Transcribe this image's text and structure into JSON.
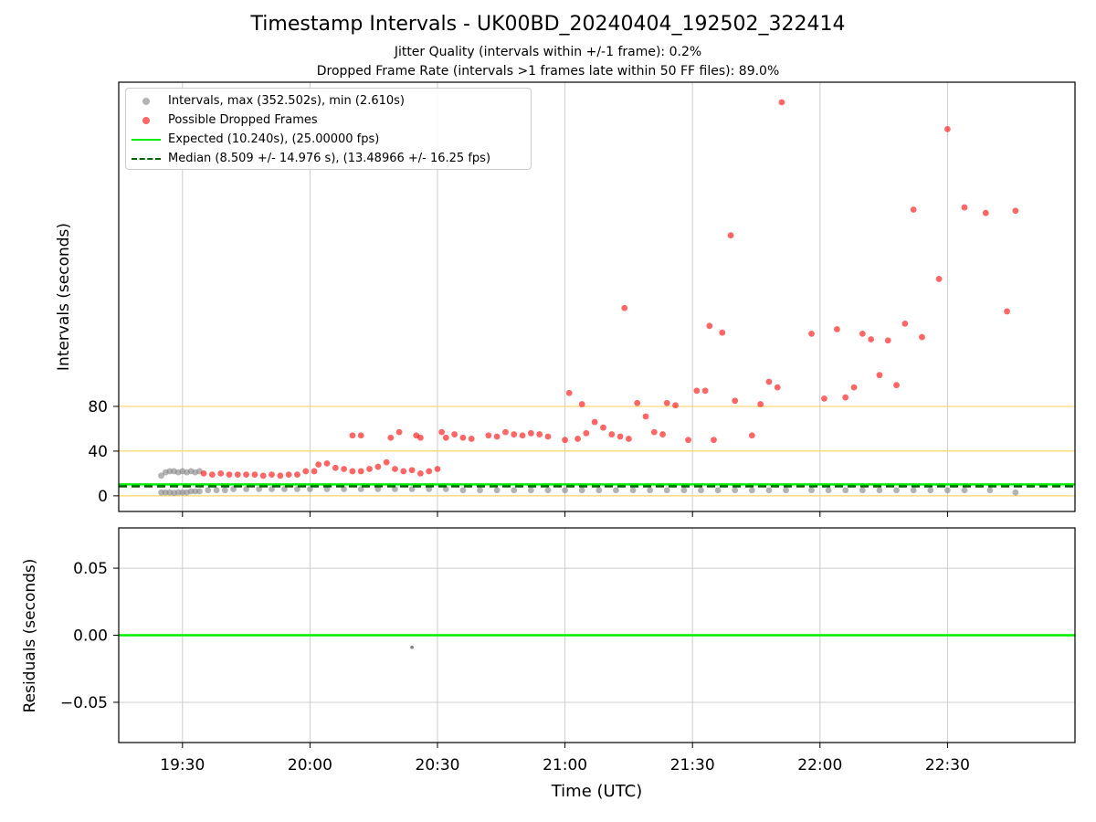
{
  "title": "Timestamp Intervals - UK00BD_20240404_192502_322414",
  "subtitle_1": "Jitter Quality (intervals within +/-1 frame): 0.2%",
  "subtitle_2": "Dropped Frame Rate (intervals >1 frames late within 50 FF files): 89.0%",
  "colors": {
    "normal": "#808080",
    "dropped": "#ff0000",
    "expected": "#00ee00",
    "median": "#006400",
    "threshold": "#ffd36b",
    "grid": "#cccccc"
  },
  "legend": {
    "items": [
      {
        "label": "Intervals, max (352.502s), min (2.610s)",
        "marker": "dot",
        "color": "#808080"
      },
      {
        "label": "Possible Dropped Frames",
        "marker": "dot",
        "color": "#ff0000"
      },
      {
        "label": "Expected (10.240s), (25.00000 fps)",
        "marker": "line",
        "color": "#00ee00"
      },
      {
        "label": "Median (8.509 +/- 14.976 s), (13.48966 +/- 16.25 fps)",
        "marker": "dashed",
        "color": "#006400"
      }
    ],
    "placement": "top-left"
  },
  "chart_data": [
    {
      "type": "scatter",
      "ylabel": "Intervals (seconds)",
      "xlabel": "",
      "xlim": [
        "19:15",
        "23:00"
      ],
      "ylim": [
        -14,
        370
      ],
      "y_ticks": [
        0,
        40,
        80
      ],
      "x_ticks": [
        "19:30",
        "20:00",
        "20:30",
        "21:00",
        "21:30",
        "22:00",
        "22:30"
      ],
      "grid": "vertical",
      "reference_lines": [
        {
          "name": "Expected",
          "y": 10.24,
          "style": "solid",
          "color": "#00ee00"
        },
        {
          "name": "Median",
          "y": 8.509,
          "style": "dashed",
          "color": "#006400"
        },
        {
          "y": 0,
          "style": "threshold",
          "color": "#ffd36b"
        },
        {
          "y": 40,
          "style": "threshold",
          "color": "#ffd36b"
        },
        {
          "y": 80,
          "style": "threshold",
          "color": "#ffd36b"
        }
      ],
      "series": [
        {
          "name": "Intervals, max (352.502s), min (2.610s)",
          "color": "#808080",
          "x": [
            "19:25",
            "19:26",
            "19:27",
            "19:28",
            "19:29",
            "19:30",
            "19:31",
            "19:32",
            "19:33",
            "19:34",
            "19:25",
            "19:26",
            "19:27",
            "19:28",
            "19:29",
            "19:30",
            "19:31",
            "19:32",
            "19:33",
            "19:34",
            "19:36",
            "19:38",
            "19:40",
            "19:42",
            "19:45",
            "19:48",
            "19:51",
            "19:54",
            "19:57",
            "20:00",
            "20:04",
            "20:08",
            "20:12",
            "20:16",
            "20:20",
            "20:24",
            "20:28",
            "20:32",
            "20:36",
            "20:40",
            "20:44",
            "20:48",
            "20:52",
            "20:56",
            "21:00",
            "21:04",
            "21:08",
            "21:12",
            "21:16",
            "21:20",
            "21:24",
            "21:28",
            "21:32",
            "21:36",
            "21:40",
            "21:44",
            "21:48",
            "21:52",
            "21:58",
            "22:02",
            "22:06",
            "22:10",
            "22:14",
            "22:18",
            "22:22",
            "22:26",
            "22:30",
            "22:34",
            "22:40",
            "22:46"
          ],
          "y": [
            18,
            21,
            22,
            22,
            21,
            22,
            21,
            22,
            21,
            22,
            3,
            3,
            3,
            2.61,
            3,
            3,
            3,
            4,
            4,
            4,
            5,
            5,
            5,
            6,
            6,
            6,
            6,
            6,
            6,
            6,
            6,
            6,
            6,
            6,
            6,
            6,
            6,
            6,
            5,
            5,
            5,
            5,
            5,
            5,
            5,
            5,
            5,
            5,
            5,
            5,
            5,
            5,
            5,
            5,
            5,
            5,
            5,
            5,
            5,
            5,
            5,
            5,
            5,
            5,
            5,
            5,
            5,
            5,
            5,
            3
          ]
        },
        {
          "name": "Possible Dropped Frames",
          "color": "#ff0000",
          "x": [
            "19:35",
            "19:37",
            "19:39",
            "19:41",
            "19:43",
            "19:45",
            "19:47",
            "19:49",
            "19:51",
            "19:53",
            "19:55",
            "19:57",
            "19:59",
            "20:01",
            "20:02",
            "20:04",
            "20:06",
            "20:08",
            "20:10",
            "20:12",
            "20:14",
            "20:16",
            "20:18",
            "20:20",
            "20:22",
            "20:24",
            "20:26",
            "20:28",
            "20:30",
            "20:10",
            "20:12",
            "20:19",
            "20:21",
            "20:25",
            "20:26",
            "20:31",
            "20:32",
            "20:34",
            "20:36",
            "20:38",
            "20:42",
            "20:44",
            "20:46",
            "20:48",
            "20:50",
            "20:52",
            "20:54",
            "20:56",
            "21:00",
            "21:03",
            "21:05",
            "21:07",
            "21:09",
            "21:11",
            "21:13",
            "21:15",
            "21:01",
            "21:04",
            "21:14",
            "21:17",
            "21:19",
            "21:21",
            "21:23",
            "21:24",
            "21:26",
            "21:29",
            "21:31",
            "21:33",
            "21:35",
            "21:37",
            "21:40",
            "21:44",
            "21:46",
            "21:48",
            "21:50",
            "21:34",
            "21:39",
            "21:51",
            "21:58",
            "22:01",
            "22:04",
            "22:06",
            "22:08",
            "22:10",
            "22:12",
            "22:14",
            "22:16",
            "22:18",
            "22:20",
            "22:22",
            "22:24",
            "22:28",
            "22:30",
            "22:34",
            "22:39",
            "22:44",
            "22:46"
          ],
          "y": [
            20,
            19,
            20,
            19,
            19,
            19,
            19,
            18,
            19,
            18,
            19,
            19,
            22,
            22,
            28,
            29,
            25,
            24,
            22,
            22,
            24,
            26,
            30,
            24,
            22,
            23,
            20,
            22,
            24,
            54,
            54,
            52,
            57,
            54,
            52,
            57,
            52,
            55,
            52,
            51,
            54,
            53,
            57,
            55,
            54,
            56,
            55,
            53,
            50,
            51,
            56,
            66,
            61,
            55,
            53,
            51,
            92,
            82,
            168,
            83,
            71,
            57,
            55,
            83,
            81,
            50,
            94,
            94,
            50,
            146,
            85,
            54,
            82,
            102,
            97,
            152,
            233,
            352,
            145,
            87,
            149,
            88,
            97,
            145,
            140,
            108,
            139,
            99,
            154,
            256,
            142,
            194,
            328,
            258,
            253,
            165,
            255
          ]
        }
      ]
    },
    {
      "type": "scatter",
      "ylabel": "Residuals (seconds)",
      "xlabel": "Time (UTC)",
      "xlim": [
        "19:15",
        "23:00"
      ],
      "ylim": [
        -0.08,
        0.08
      ],
      "y_ticks": [
        "0.05",
        "0.00",
        "−0.05"
      ],
      "x_ticks": [
        "19:30",
        "20:00",
        "20:30",
        "21:00",
        "21:30",
        "22:00",
        "22:30"
      ],
      "grid": "both",
      "reference_lines": [
        {
          "y": 0,
          "style": "solid",
          "color": "#00ee00"
        }
      ],
      "series": [
        {
          "color": "#808080",
          "x": [
            "20:24"
          ],
          "y": [
            -0.009
          ]
        }
      ]
    }
  ]
}
